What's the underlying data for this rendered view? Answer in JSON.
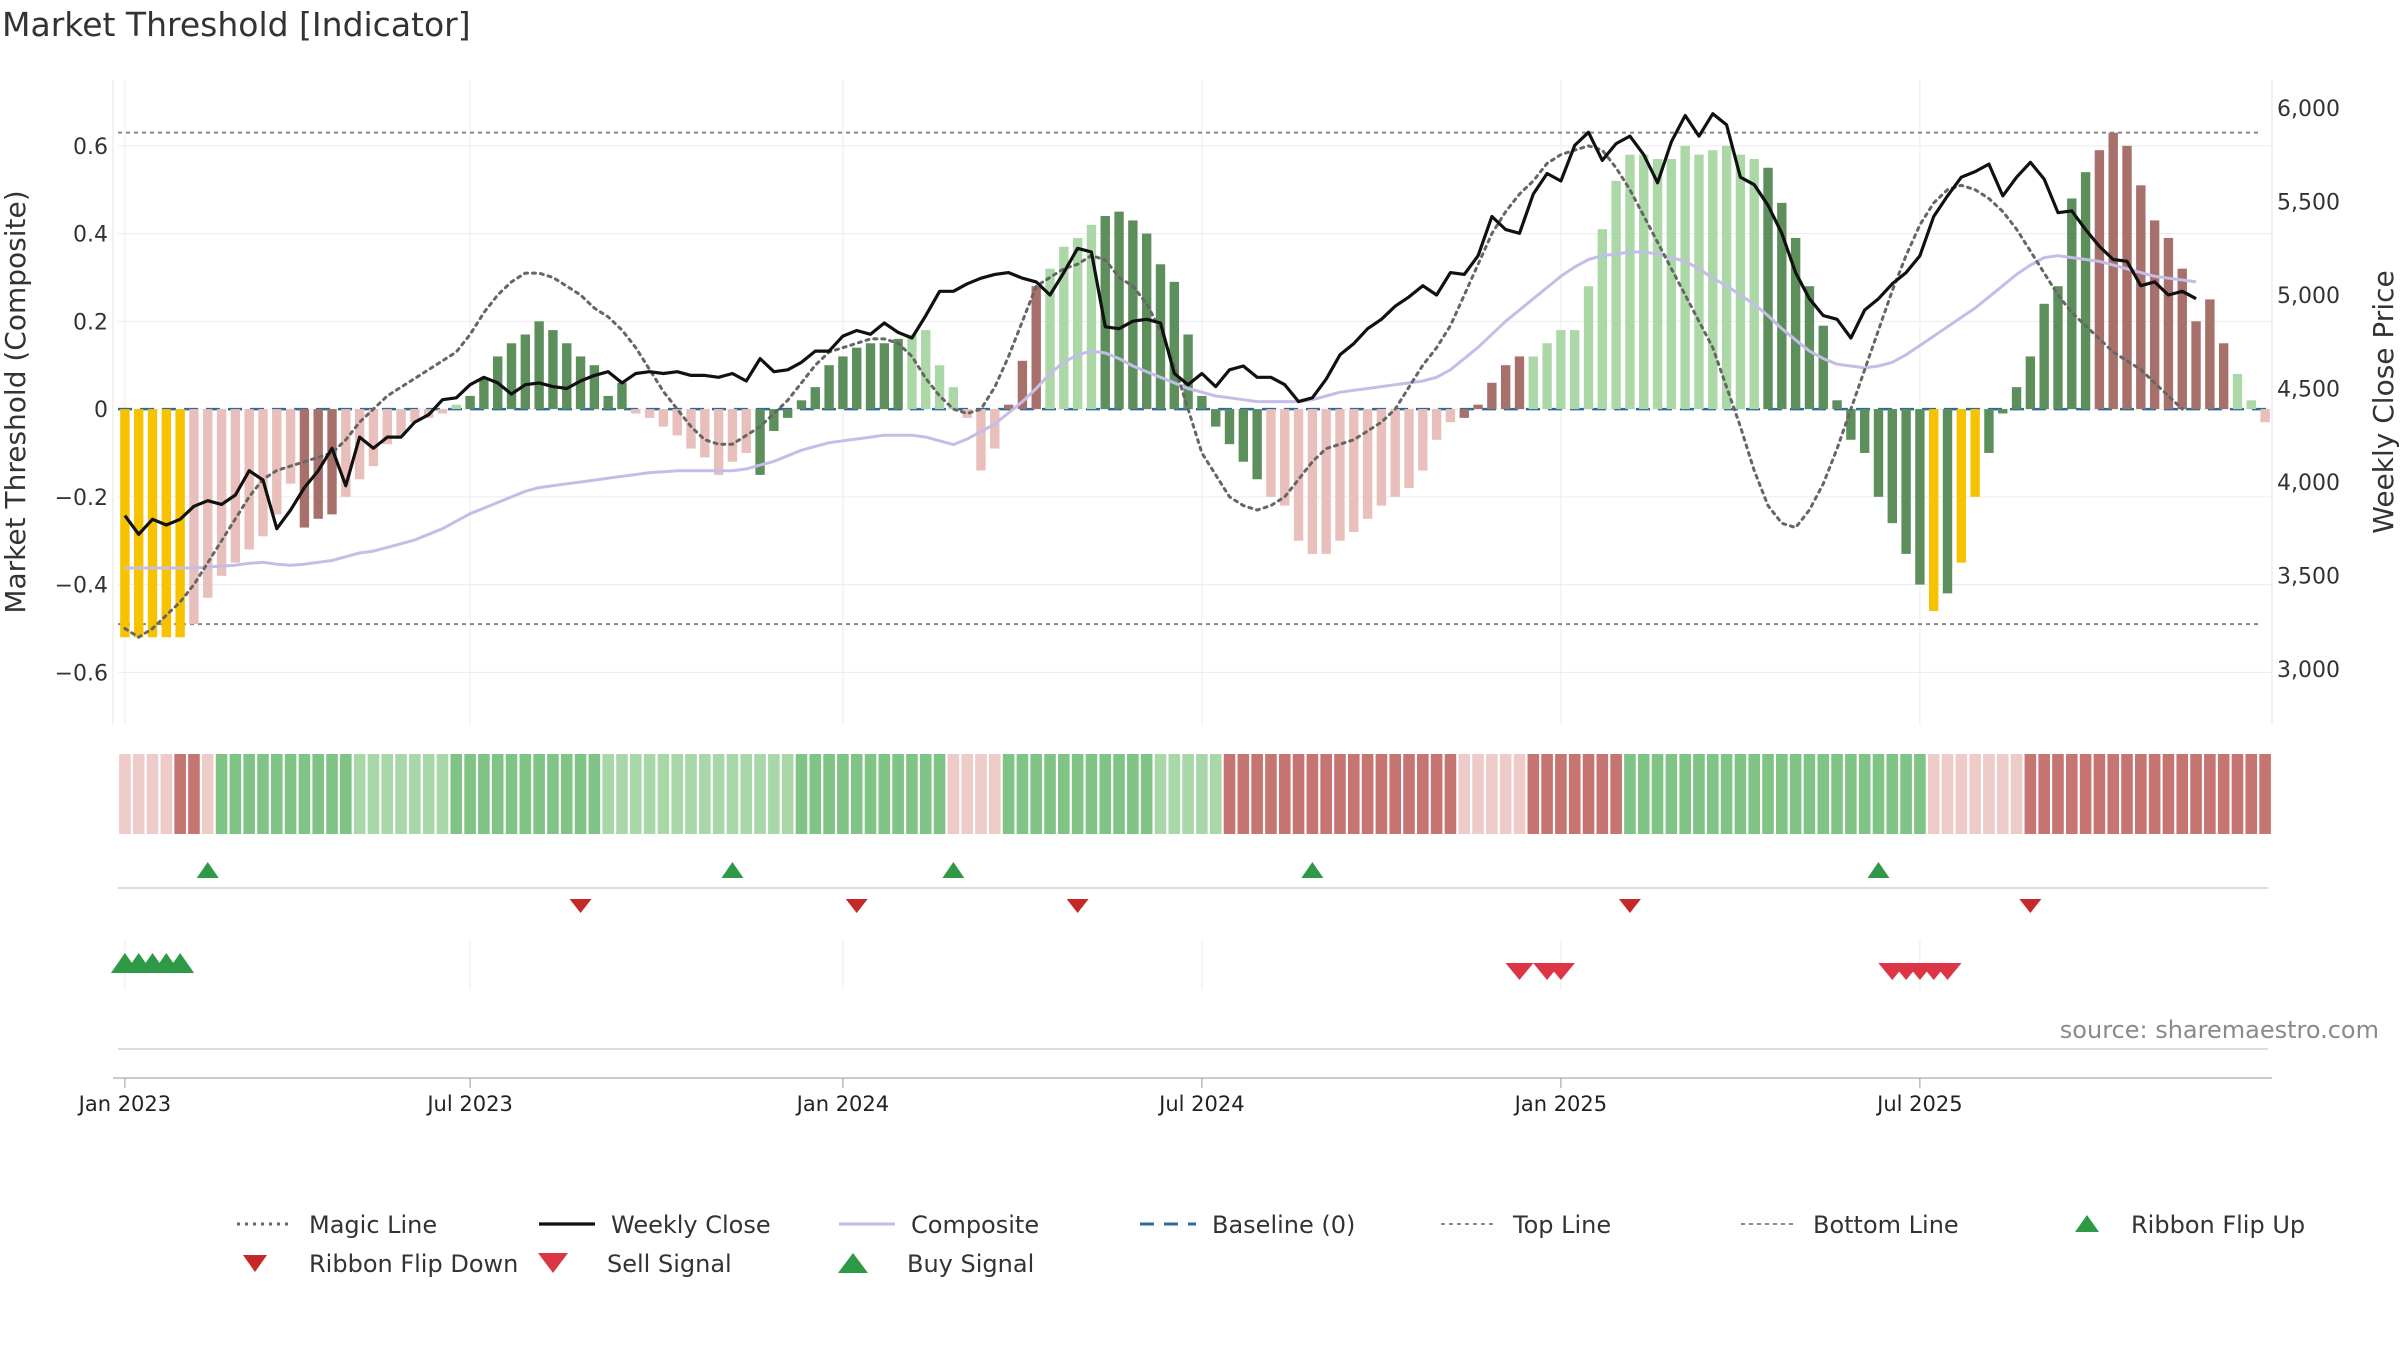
{
  "title": "Market Threshold [Indicator]",
  "source_text": "source: sharemaestro.com",
  "colors": {
    "strong_pos": "#5c8f5c",
    "weak_pos": "#acd8a7",
    "strong_neg": "#a8706b",
    "weak_neg": "#e8bfbb",
    "extreme": "#f7c200",
    "close_line": "#111111",
    "composite_line": "#c3bde8",
    "magic_line": "#666666",
    "baseline": "#2c6b9a",
    "band_line": "#888888",
    "buy": "#2e9a48",
    "sell": "#dc3545",
    "flip_down": "#c62828"
  },
  "legend": [
    {
      "label": "Magic Line",
      "style": "dotted-line"
    },
    {
      "label": "Weekly Close",
      "style": "solid-line"
    },
    {
      "label": "Composite",
      "style": "composite-line"
    },
    {
      "label": "Baseline (0)",
      "style": "dashed-line"
    },
    {
      "label": "Top Line",
      "style": "band-line"
    },
    {
      "label": "Bottom Line",
      "style": "band-line"
    },
    {
      "label": "Ribbon Flip Up",
      "style": "up-triangle"
    },
    {
      "label": "Ribbon Flip Down",
      "style": "down-triangle"
    },
    {
      "label": "Sell Signal",
      "style": "sell-triangle"
    },
    {
      "label": "Buy Signal",
      "style": "buy-triangle"
    }
  ],
  "chart_data": {
    "type": "bar",
    "ylabel_left": "Market Threshold (Composite)",
    "ylabel_right": "Weekly Close Price",
    "ylim_left": [
      -0.72,
      0.75
    ],
    "ylim_right": [
      2700,
      6150
    ],
    "left_ticks": [
      "0.6",
      "0.4",
      "0.2",
      "0",
      "−0.2",
      "−0.4",
      "−0.6"
    ],
    "left_tick_values": [
      0.6,
      0.4,
      0.2,
      0,
      -0.2,
      -0.4,
      -0.6
    ],
    "right_ticks": [
      "6,000",
      "5,500",
      "5,000",
      "4,500",
      "4,000",
      "3,500",
      "3,000"
    ],
    "right_tick_values": [
      6000,
      5500,
      5000,
      4500,
      4000,
      3500,
      3000
    ],
    "x_tick_labels": [
      "Jan 2023",
      "Jul 2023",
      "Jan 2024",
      "Jul 2024",
      "Jan 2025",
      "Jul 2025"
    ],
    "x_tick_weeks": [
      1,
      26,
      53,
      79,
      105,
      131
    ],
    "top_line": 0.63,
    "bottom_line": -0.49,
    "baseline": 0,
    "composite": [
      -0.52,
      -0.52,
      -0.52,
      -0.52,
      -0.52,
      -0.49,
      -0.43,
      -0.38,
      -0.35,
      -0.32,
      -0.29,
      -0.24,
      -0.17,
      -0.27,
      -0.25,
      -0.24,
      -0.2,
      -0.16,
      -0.13,
      -0.08,
      -0.06,
      -0.03,
      -0.02,
      -0.01,
      0.01,
      0.03,
      0.07,
      0.12,
      0.15,
      0.17,
      0.2,
      0.18,
      0.15,
      0.12,
      0.1,
      0.03,
      0.06,
      -0.01,
      -0.02,
      -0.04,
      -0.06,
      -0.09,
      -0.11,
      -0.15,
      -0.12,
      -0.1,
      -0.15,
      -0.05,
      -0.02,
      0.02,
      0.05,
      0.1,
      0.12,
      0.14,
      0.15,
      0.15,
      0.16,
      0.17,
      0.18,
      0.1,
      0.05,
      -0.02,
      -0.14,
      -0.09,
      0.01,
      0.11,
      0.28,
      0.32,
      0.37,
      0.39,
      0.42,
      0.44,
      0.45,
      0.43,
      0.4,
      0.33,
      0.29,
      0.17,
      0.03,
      -0.04,
      -0.08,
      -0.12,
      -0.16,
      -0.2,
      -0.22,
      -0.3,
      -0.33,
      -0.33,
      -0.3,
      -0.28,
      -0.25,
      -0.22,
      -0.2,
      -0.18,
      -0.14,
      -0.07,
      -0.03,
      -0.02,
      0.01,
      0.06,
      0.1,
      0.12,
      0.12,
      0.15,
      0.18,
      0.18,
      0.28,
      0.41,
      0.52,
      0.58,
      0.58,
      0.57,
      0.57,
      0.6,
      0.58,
      0.59,
      0.6,
      0.58,
      0.57,
      0.55,
      0.47,
      0.39,
      0.28,
      0.19,
      0.02,
      -0.07,
      -0.1,
      -0.2,
      -0.26,
      -0.33,
      -0.4,
      -0.46,
      -0.42,
      -0.35,
      -0.2,
      -0.1,
      -0.01,
      0.05,
      0.12,
      0.24,
      0.28,
      0.48,
      0.54,
      0.59,
      0.63,
      0.6,
      0.51,
      0.43,
      0.39,
      0.32,
      0.2,
      0.25,
      0.15,
      0.08,
      0.02,
      -0.03
    ],
    "bar_color_codes": "YYYYYLLLLLLLLSSSLLLLLLLLLGGGGGGGGGGGGLLLLLLLLLGGGGGGGGGGGLLLLLLLSSSLLLLGGGGGGGGGGGGLLLLLLLLLLLLLLSSSSSLLLLLLLLLLLLLLLLLGGGGGGGGGGGGYGYYGGGGGGGGSSSSSSSSSSLLLLLLGGGGGGGYYYYYGGGGGGGGLLL",
    "close": [
      3820,
      3720,
      3800,
      3770,
      3800,
      3870,
      3900,
      3880,
      3930,
      4060,
      4010,
      3750,
      3850,
      3970,
      4060,
      4180,
      3980,
      4240,
      4180,
      4240,
      4240,
      4320,
      4360,
      4440,
      4450,
      4520,
      4560,
      4530,
      4470,
      4520,
      4530,
      4510,
      4500,
      4540,
      4570,
      4590,
      4530,
      4580,
      4590,
      4580,
      4590,
      4570,
      4570,
      4560,
      4580,
      4540,
      4660,
      4590,
      4600,
      4640,
      4700,
      4700,
      4780,
      4810,
      4790,
      4850,
      4800,
      4770,
      4890,
      5020,
      5020,
      5060,
      5090,
      5110,
      5120,
      5090,
      5070,
      5000,
      5120,
      5250,
      5230,
      4830,
      4820,
      4860,
      4870,
      4850,
      4580,
      4520,
      4580,
      4510,
      4600,
      4620,
      4560,
      4560,
      4520,
      4430,
      4450,
      4550,
      4680,
      4740,
      4820,
      4870,
      4940,
      4990,
      5050,
      5000,
      5120,
      5110,
      5210,
      5420,
      5350,
      5330,
      5540,
      5650,
      5610,
      5800,
      5870,
      5720,
      5810,
      5850,
      5750,
      5600,
      5820,
      5960,
      5850,
      5970,
      5910,
      5630,
      5590,
      5480,
      5330,
      5120,
      4980,
      4890,
      4870,
      4770,
      4920,
      4980,
      5060,
      5120,
      5210,
      5420,
      5530,
      5630,
      5660,
      5700,
      5530,
      5630,
      5710,
      5620,
      5440,
      5450,
      5350,
      5260,
      5190,
      5180,
      5050,
      5070,
      5000,
      5020,
      4980
    ],
    "composite_line": [
      3540,
      3540,
      3540,
      3540,
      3540,
      3540,
      3545,
      3550,
      3555,
      3565,
      3570,
      3560,
      3555,
      3560,
      3570,
      3580,
      3600,
      3620,
      3630,
      3650,
      3670,
      3690,
      3720,
      3750,
      3790,
      3830,
      3860,
      3890,
      3920,
      3950,
      3970,
      3980,
      3990,
      4000,
      4010,
      4020,
      4030,
      4040,
      4050,
      4055,
      4060,
      4060,
      4060,
      4060,
      4060,
      4070,
      4090,
      4110,
      4140,
      4170,
      4190,
      4210,
      4220,
      4230,
      4240,
      4250,
      4250,
      4250,
      4240,
      4220,
      4200,
      4230,
      4270,
      4310,
      4370,
      4430,
      4500,
      4580,
      4640,
      4680,
      4700,
      4690,
      4660,
      4620,
      4590,
      4560,
      4530,
      4500,
      4480,
      4460,
      4450,
      4440,
      4430,
      4430,
      4430,
      4430,
      4440,
      4460,
      4480,
      4490,
      4500,
      4510,
      4520,
      4530,
      4540,
      4560,
      4600,
      4660,
      4720,
      4790,
      4860,
      4920,
      4980,
      5040,
      5100,
      5150,
      5190,
      5210,
      5220,
      5230,
      5230,
      5220,
      5200,
      5180,
      5140,
      5090,
      5050,
      5000,
      4950,
      4890,
      4820,
      4760,
      4700,
      4660,
      4630,
      4620,
      4610,
      4620,
      4640,
      4680,
      4730,
      4780,
      4830,
      4880,
      4930,
      4990,
      5050,
      5110,
      5160,
      5200,
      5210,
      5200,
      5190,
      5180,
      5160,
      5140,
      5120,
      5100,
      5090,
      5080,
      5070
    ],
    "magic": [
      -0.5,
      -0.52,
      -0.5,
      -0.47,
      -0.44,
      -0.4,
      -0.35,
      -0.3,
      -0.25,
      -0.2,
      -0.16,
      -0.14,
      -0.13,
      -0.12,
      -0.11,
      -0.1,
      -0.07,
      -0.03,
      0.0,
      0.03,
      0.05,
      0.07,
      0.09,
      0.11,
      0.13,
      0.17,
      0.22,
      0.26,
      0.29,
      0.31,
      0.31,
      0.3,
      0.28,
      0.26,
      0.23,
      0.21,
      0.18,
      0.14,
      0.09,
      0.04,
      0.0,
      -0.04,
      -0.07,
      -0.08,
      -0.08,
      -0.06,
      -0.04,
      -0.01,
      0.02,
      0.06,
      0.1,
      0.13,
      0.14,
      0.15,
      0.16,
      0.16,
      0.15,
      0.12,
      0.07,
      0.03,
      0.0,
      -0.01,
      0.0,
      0.05,
      0.12,
      0.2,
      0.28,
      0.3,
      0.32,
      0.33,
      0.35,
      0.34,
      0.3,
      0.28,
      0.24,
      0.18,
      0.1,
      0.0,
      -0.1,
      -0.15,
      -0.2,
      -0.22,
      -0.23,
      -0.22,
      -0.2,
      -0.16,
      -0.12,
      -0.09,
      -0.08,
      -0.07,
      -0.05,
      -0.03,
      0.0,
      0.05,
      0.1,
      0.14,
      0.19,
      0.26,
      0.33,
      0.4,
      0.45,
      0.49,
      0.52,
      0.56,
      0.58,
      0.59,
      0.6,
      0.59,
      0.55,
      0.5,
      0.44,
      0.38,
      0.32,
      0.26,
      0.2,
      0.14,
      0.05,
      -0.04,
      -0.14,
      -0.22,
      -0.26,
      -0.27,
      -0.23,
      -0.17,
      -0.09,
      0.0,
      0.09,
      0.18,
      0.27,
      0.35,
      0.42,
      0.47,
      0.5,
      0.51,
      0.5,
      0.48,
      0.45,
      0.41,
      0.36,
      0.31,
      0.26,
      0.22,
      0.19,
      0.16,
      0.13,
      0.11,
      0.09,
      0.06,
      0.03,
      0.0
    ],
    "ribbon_codes": "llllLLlMMMMMMMMMMmmmmmmmMMMMMMMMMMMmmmmmmmmmmmmmmMMMMMMMMMMMllllMMMMMMMMMMMmmmmmLLLLLLLLLLLLLLLLLlllllLLLLLLLMMMMMMMMMMMMMMMMMMMMMMlllllllLLLLLLLLLLLLLLLLLLMMMMMMMMMMMMMMMMMmmmmmmmmMMMMlLLL",
    "ribbon_flip_up_weeks": [
      7,
      45,
      61,
      87,
      128
    ],
    "ribbon_flip_down_weeks": [
      34,
      54,
      70,
      110,
      139
    ],
    "buy_signal_weeks": [
      1,
      2,
      3,
      4,
      5
    ],
    "sell_signal_weeks": [
      102,
      104,
      105,
      129,
      130,
      131,
      132,
      133
    ]
  }
}
